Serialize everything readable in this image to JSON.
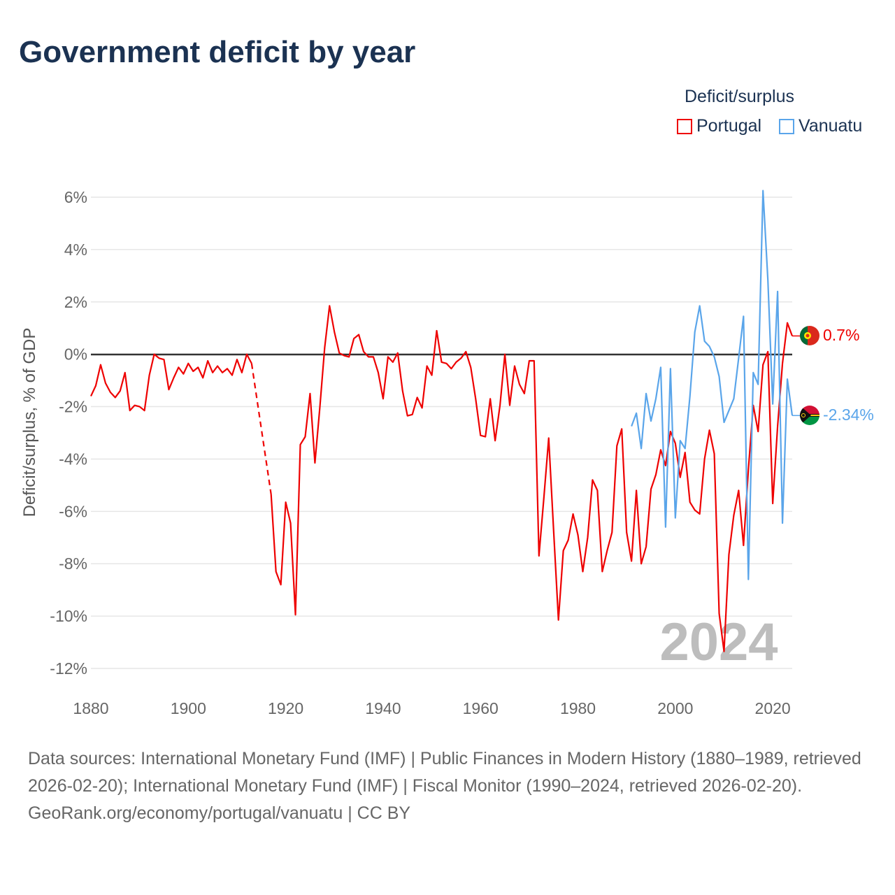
{
  "title": "Government deficit by year",
  "legend": {
    "title": "Deficit/surplus",
    "items": [
      {
        "label": "Portugal",
        "color": "#ee0000"
      },
      {
        "label": "Vanuatu",
        "color": "#5aa5ea"
      }
    ]
  },
  "chart_data": {
    "type": "line",
    "title": "Government deficit by year",
    "xlabel": "",
    "ylabel": "Deficit/surplus, % of GDP",
    "xlim": [
      1880,
      2024
    ],
    "ylim": [
      -12,
      6
    ],
    "grid": true,
    "legend_placement": "top-right",
    "yticks": [
      "6%",
      "4%",
      "2%",
      "0%",
      "-2%",
      "-4%",
      "-6%",
      "-8%",
      "-10%",
      "-12%"
    ],
    "ytick_values": [
      6,
      4,
      2,
      0,
      -2,
      -4,
      -6,
      -8,
      -10,
      -12
    ],
    "xticks": [
      "1880",
      "1900",
      "1920",
      "1940",
      "1960",
      "1980",
      "2000",
      "2020"
    ],
    "xtick_values": [
      1880,
      1900,
      1920,
      1940,
      1960,
      1980,
      2000,
      2020
    ],
    "year_watermark": "2024",
    "series": [
      {
        "name": "Portugal",
        "color": "#ee0000",
        "end_label": "0.7%",
        "x_start": 1880,
        "values": [
          -1.6,
          -1.2,
          -0.4,
          -1.1,
          -1.45,
          -1.65,
          -1.4,
          -0.7,
          -2.15,
          -1.95,
          -2.0,
          -2.15,
          -0.8,
          0,
          -0.15,
          -0.2,
          -1.35,
          -0.9,
          -0.5,
          -0.75,
          -0.35,
          -0.65,
          -0.5,
          -0.9,
          -0.25,
          -0.7,
          -0.45,
          -0.7,
          -0.55,
          -0.8,
          -0.2,
          -0.7,
          0,
          -0.35,
          null,
          null,
          null,
          -5.35,
          -8.3,
          -8.8,
          -5.65,
          -6.45,
          -9.95,
          -3.45,
          -3.15,
          -1.5,
          -4.15,
          -2.05,
          0.25,
          1.85,
          0.85,
          0.05,
          -0.05,
          -0.1,
          0.6,
          0.75,
          0.1,
          -0.1,
          -0.1,
          -0.7,
          -1.7,
          -0.1,
          -0.3,
          0.05,
          -1.4,
          -2.35,
          -2.3,
          -1.65,
          -2.05,
          -0.45,
          -0.8,
          0.9,
          -0.3,
          -0.35,
          -0.55,
          -0.3,
          -0.15,
          0.1,
          -0.5,
          -1.7,
          -3.1,
          -3.15,
          -1.7,
          -3.3,
          -1.95,
          0,
          -1.95,
          -0.45,
          -1.15,
          -1.5,
          -0.25,
          -0.25,
          -7.7,
          -5.5,
          -3.2,
          -6.7,
          -10.15,
          -7.5,
          -7.1,
          -6.1,
          -6.9,
          -8.3,
          -7.0,
          -4.8,
          -5.2,
          -8.3,
          -7.5,
          -6.8,
          -3.5,
          -2.85,
          -6.8,
          -7.9,
          -5.2,
          -8.0,
          -7.35,
          -5.15,
          -4.6,
          -3.65,
          -4.25,
          -2.95,
          -3.4,
          -4.7,
          -3.75,
          -5.65,
          -5.95,
          -6.1,
          -4.0,
          -2.9,
          -3.8,
          -9.9,
          -11.35,
          -7.65,
          -6.15,
          -5.2,
          -7.3,
          -4.4,
          -1.95,
          -2.95,
          -0.4,
          0.1,
          -5.7,
          -2.75,
          -0.35,
          1.2,
          0.7
        ]
      },
      {
        "name": "Vanuatu",
        "color": "#5aa5ea",
        "end_label": "-2.34%",
        "x_start": 1991,
        "values": [
          -2.75,
          -2.25,
          -3.6,
          -1.5,
          -2.55,
          -1.7,
          -0.5,
          -6.6,
          -0.55,
          -6.25,
          -3.3,
          -3.6,
          -1.6,
          0.85,
          1.85,
          0.5,
          0.3,
          -0.1,
          -0.85,
          -2.6,
          -2.15,
          -1.7,
          -0.15,
          1.45,
          -8.6,
          -0.7,
          -1.15,
          6.25,
          2.85,
          -1.9,
          2.4,
          -6.45,
          -0.95,
          -2.34
        ]
      }
    ]
  },
  "footer": {
    "sources": "Data sources: International Monetary Fund (IMF) | Public Finances in Modern History (1880–1989, retrieved 2026-02-20); International Monetary Fund (IMF) | Fiscal Monitor (1990–2024, retrieved 2026-02-20).",
    "credit": "GeoRank.org/economy/portugal/vanuatu | CC BY"
  }
}
